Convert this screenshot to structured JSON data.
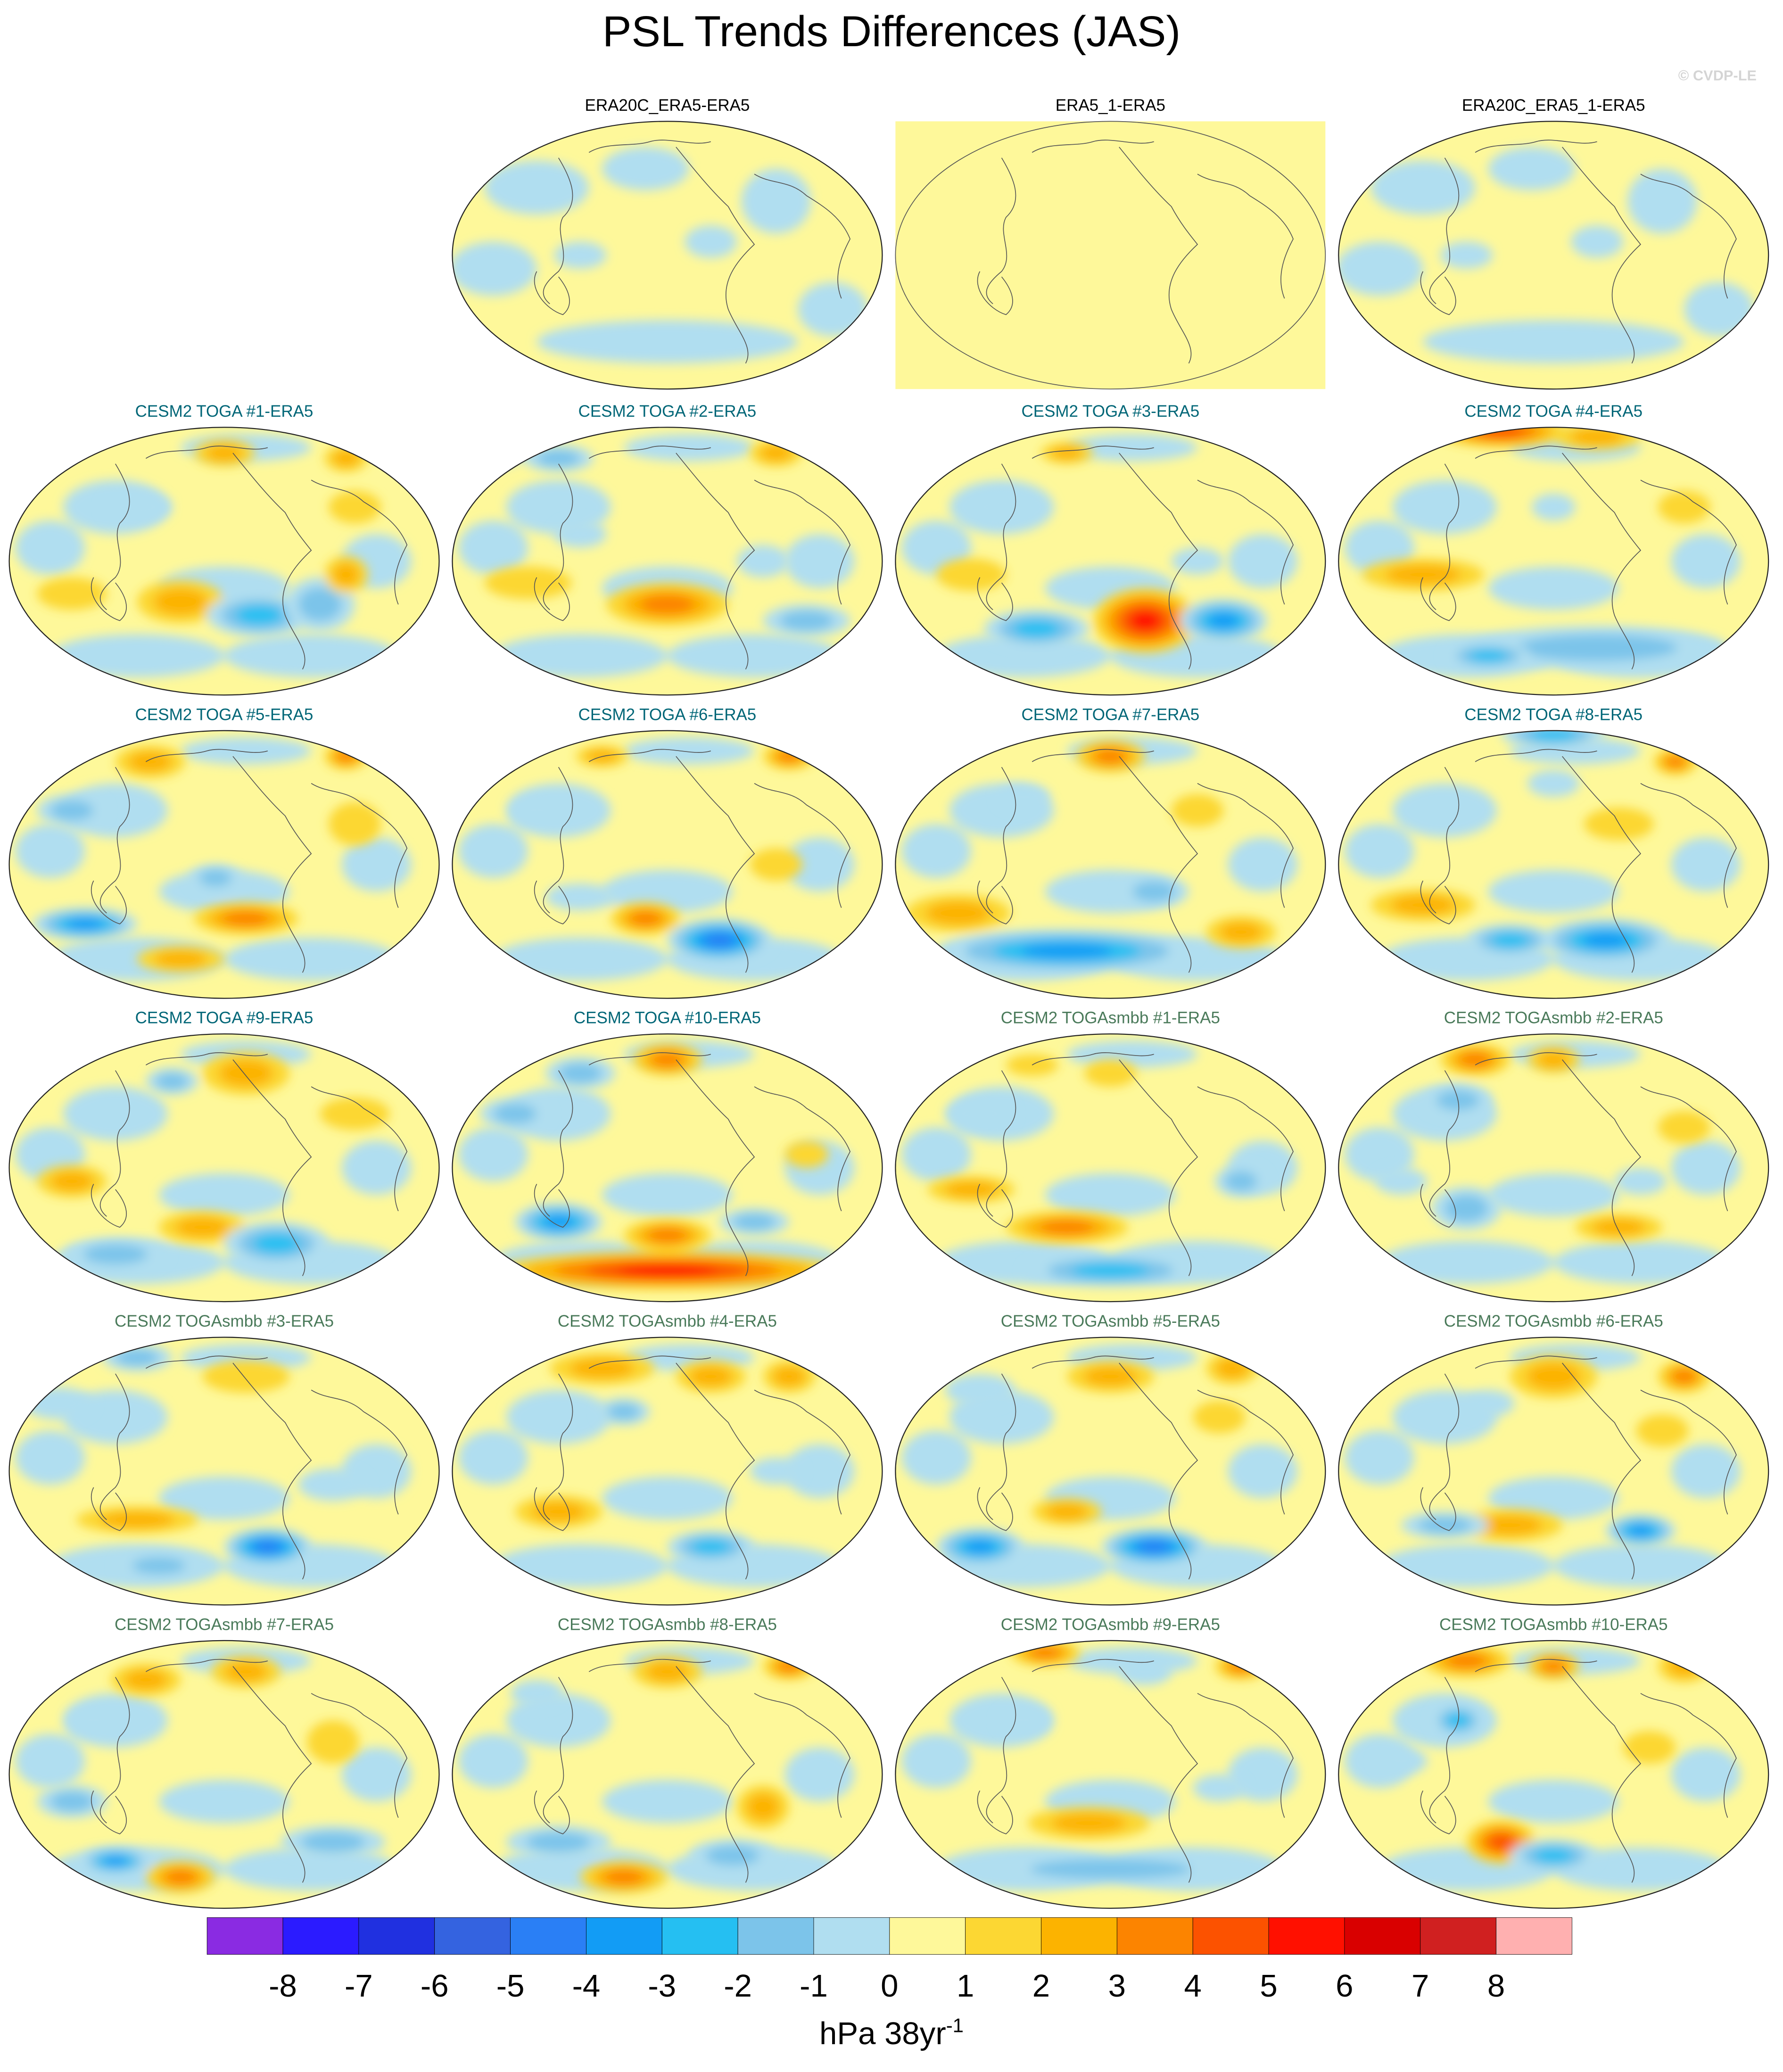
{
  "title": "PSL Trends Differences (JAS)",
  "copyright": "© CVDP-LE",
  "colorbar": {
    "colors": [
      "#8a2be2",
      "#2b1bff",
      "#2030e0",
      "#3463e0",
      "#2a7ff5",
      "#129cf5",
      "#25bff2",
      "#7cc4ea",
      "#b0def0",
      "#fef89a",
      "#fcd733",
      "#fcb300",
      "#fc8400",
      "#fc5200",
      "#ff1000",
      "#d90000",
      "#d02020",
      "#ffb0b0"
    ],
    "ticks": [
      "-8",
      "-7",
      "-6",
      "-5",
      "-4",
      "-3",
      "-2",
      "-1",
      "0",
      "1",
      "2",
      "3",
      "4",
      "5",
      "6",
      "7",
      "8"
    ],
    "units": "hPa 38yr",
    "units_exp": "-1"
  },
  "panels": [
    {
      "title": "ERA20C_ERA5-ERA5",
      "title_color": "#000000",
      "style": "obs",
      "blobs": []
    },
    {
      "title": "ERA5_1-ERA5",
      "title_color": "#000000",
      "style": "flat",
      "blobs": []
    },
    {
      "title": "ERA20C_ERA5_1-ERA5",
      "title_color": "#000000",
      "style": "obs",
      "blobs": []
    },
    {
      "title": "CESM2 TOGA #1-ERA5",
      "title_color": "#006677",
      "blobs": [
        [
          0.5,
          0.1,
          0.07,
          0.05,
          2
        ],
        [
          0.78,
          0.12,
          0.05,
          0.05,
          2
        ],
        [
          0.8,
          0.3,
          0.06,
          0.06,
          1
        ],
        [
          0.4,
          0.65,
          0.1,
          0.08,
          2
        ],
        [
          0.15,
          0.62,
          0.08,
          0.06,
          1
        ],
        [
          0.58,
          0.7,
          0.12,
          0.08,
          -3
        ],
        [
          0.72,
          0.66,
          0.08,
          0.1,
          -2
        ],
        [
          0.78,
          0.55,
          0.05,
          0.07,
          2
        ],
        [
          0.3,
          0.3,
          0.08,
          0.06,
          -1
        ]
      ]
    },
    {
      "title": "CESM2 TOGA #2-ERA5",
      "title_color": "#006677",
      "blobs": [
        [
          0.08,
          0.08,
          0.1,
          0.08,
          -2
        ],
        [
          0.25,
          0.12,
          0.08,
          0.05,
          -2
        ],
        [
          0.75,
          0.1,
          0.06,
          0.05,
          2
        ],
        [
          0.5,
          0.66,
          0.14,
          0.08,
          3
        ],
        [
          0.18,
          0.58,
          0.1,
          0.06,
          1
        ],
        [
          0.72,
          0.5,
          0.06,
          0.06,
          -1
        ],
        [
          0.3,
          0.4,
          0.06,
          0.05,
          -1
        ],
        [
          0.82,
          0.72,
          0.1,
          0.06,
          -2
        ]
      ]
    },
    {
      "title": "CESM2 TOGA #3-ERA5",
      "title_color": "#006677",
      "blobs": [
        [
          0.58,
          0.72,
          0.12,
          0.12,
          5
        ],
        [
          0.33,
          0.75,
          0.12,
          0.07,
          -3
        ],
        [
          0.76,
          0.72,
          0.1,
          0.08,
          -4
        ],
        [
          0.4,
          0.1,
          0.06,
          0.04,
          2
        ],
        [
          0.25,
          0.3,
          0.08,
          0.06,
          -1
        ],
        [
          0.18,
          0.55,
          0.08,
          0.06,
          1
        ],
        [
          0.7,
          0.5,
          0.06,
          0.05,
          -1
        ]
      ]
    },
    {
      "title": "CESM2 TOGA #4-ERA5",
      "title_color": "#006677",
      "blobs": [
        [
          0.38,
          0.02,
          0.15,
          0.06,
          4
        ],
        [
          0.6,
          0.04,
          0.1,
          0.05,
          2
        ],
        [
          0.2,
          0.55,
          0.14,
          0.06,
          2
        ],
        [
          0.6,
          0.82,
          0.3,
          0.08,
          -2
        ],
        [
          0.35,
          0.85,
          0.1,
          0.05,
          -3
        ],
        [
          0.8,
          0.3,
          0.06,
          0.06,
          1
        ],
        [
          0.5,
          0.3,
          0.05,
          0.05,
          -1
        ]
      ]
    },
    {
      "title": "CESM2 TOGA #5-ERA5",
      "title_color": "#006677",
      "blobs": [
        [
          0.33,
          0.12,
          0.08,
          0.06,
          2
        ],
        [
          0.78,
          0.1,
          0.05,
          0.05,
          3
        ],
        [
          0.15,
          0.3,
          0.08,
          0.06,
          -2
        ],
        [
          0.55,
          0.7,
          0.12,
          0.06,
          3
        ],
        [
          0.18,
          0.72,
          0.12,
          0.06,
          -4
        ],
        [
          0.48,
          0.55,
          0.06,
          0.05,
          -2
        ],
        [
          0.8,
          0.35,
          0.06,
          0.08,
          1
        ],
        [
          0.4,
          0.85,
          0.1,
          0.05,
          2
        ]
      ]
    },
    {
      "title": "CESM2 TOGA #6-ERA5",
      "title_color": "#006677",
      "blobs": [
        [
          0.78,
          0.1,
          0.06,
          0.05,
          3
        ],
        [
          0.35,
          0.1,
          0.06,
          0.04,
          2
        ],
        [
          0.45,
          0.7,
          0.08,
          0.06,
          3
        ],
        [
          0.62,
          0.78,
          0.12,
          0.08,
          -5
        ],
        [
          0.3,
          0.62,
          0.08,
          0.05,
          -1
        ],
        [
          0.75,
          0.5,
          0.06,
          0.06,
          1
        ],
        [
          0.2,
          0.3,
          0.06,
          0.05,
          -1
        ]
      ]
    },
    {
      "title": "CESM2 TOGA #7-ERA5",
      "title_color": "#006677",
      "blobs": [
        [
          0.5,
          0.1,
          0.08,
          0.06,
          3
        ],
        [
          0.15,
          0.68,
          0.12,
          0.07,
          2
        ],
        [
          0.4,
          0.82,
          0.3,
          0.08,
          -4
        ],
        [
          0.6,
          0.6,
          0.08,
          0.06,
          -2
        ],
        [
          0.7,
          0.3,
          0.06,
          0.06,
          1
        ],
        [
          0.8,
          0.75,
          0.08,
          0.06,
          2
        ],
        [
          0.3,
          0.25,
          0.06,
          0.05,
          -1
        ]
      ]
    },
    {
      "title": "CESM2 TOGA #8-ERA5",
      "title_color": "#006677",
      "blobs": [
        [
          0.5,
          0.02,
          0.12,
          0.05,
          -3
        ],
        [
          0.78,
          0.12,
          0.05,
          0.05,
          3
        ],
        [
          0.2,
          0.65,
          0.12,
          0.06,
          2
        ],
        [
          0.62,
          0.78,
          0.15,
          0.08,
          -4
        ],
        [
          0.4,
          0.78,
          0.1,
          0.06,
          -3
        ],
        [
          0.65,
          0.35,
          0.08,
          0.06,
          1
        ],
        [
          0.5,
          0.2,
          0.06,
          0.05,
          -1
        ]
      ]
    },
    {
      "title": "CESM2 TOGA #9-ERA5",
      "title_color": "#006677",
      "blobs": [
        [
          0.55,
          0.15,
          0.1,
          0.08,
          2
        ],
        [
          0.38,
          0.18,
          0.06,
          0.05,
          -2
        ],
        [
          0.15,
          0.55,
          0.08,
          0.06,
          2
        ],
        [
          0.45,
          0.72,
          0.1,
          0.06,
          2
        ],
        [
          0.62,
          0.78,
          0.12,
          0.08,
          -3
        ],
        [
          0.25,
          0.82,
          0.12,
          0.06,
          -2
        ],
        [
          0.8,
          0.3,
          0.08,
          0.06,
          1
        ]
      ]
    },
    {
      "title": "CESM2 TOGA #10-ERA5",
      "title_color": "#006677",
      "blobs": [
        [
          0.5,
          0.88,
          0.4,
          0.07,
          5
        ],
        [
          0.5,
          0.75,
          0.1,
          0.06,
          3
        ],
        [
          0.25,
          0.7,
          0.1,
          0.07,
          -4
        ],
        [
          0.5,
          0.1,
          0.08,
          0.06,
          3
        ],
        [
          0.3,
          0.15,
          0.08,
          0.06,
          -2
        ],
        [
          0.15,
          0.3,
          0.08,
          0.06,
          -2
        ],
        [
          0.7,
          0.7,
          0.08,
          0.05,
          -2
        ],
        [
          0.82,
          0.45,
          0.05,
          0.05,
          1
        ]
      ]
    },
    {
      "title": "CESM2 TOGAsmbb #1-ERA5",
      "title_color": "#4a7a5a",
      "blobs": [
        [
          0.4,
          0.72,
          0.14,
          0.06,
          3
        ],
        [
          0.5,
          0.88,
          0.2,
          0.06,
          -3
        ],
        [
          0.32,
          0.12,
          0.06,
          0.04,
          1
        ],
        [
          0.5,
          0.15,
          0.06,
          0.05,
          1
        ],
        [
          0.2,
          0.3,
          0.08,
          0.06,
          -1
        ],
        [
          0.18,
          0.58,
          0.1,
          0.05,
          2
        ],
        [
          0.8,
          0.55,
          0.06,
          0.06,
          -2
        ]
      ]
    },
    {
      "title": "CESM2 TOGAsmbb #2-ERA5",
      "title_color": "#4a7a5a",
      "blobs": [
        [
          0.32,
          0.1,
          0.08,
          0.06,
          3
        ],
        [
          0.5,
          0.1,
          0.06,
          0.05,
          2
        ],
        [
          0.28,
          0.25,
          0.08,
          0.06,
          -2
        ],
        [
          0.3,
          0.65,
          0.08,
          0.08,
          -2
        ],
        [
          0.65,
          0.72,
          0.1,
          0.05,
          2
        ],
        [
          0.15,
          0.55,
          0.06,
          0.05,
          -1
        ],
        [
          0.8,
          0.35,
          0.06,
          0.06,
          1
        ],
        [
          0.7,
          0.55,
          0.06,
          0.05,
          -1
        ]
      ]
    },
    {
      "title": "CESM2 TOGAsmbb #3-ERA5",
      "title_color": "#4a7a5a",
      "blobs": [
        [
          0.6,
          0.78,
          0.1,
          0.07,
          -5
        ],
        [
          0.3,
          0.68,
          0.14,
          0.05,
          2
        ],
        [
          0.55,
          0.15,
          0.1,
          0.06,
          1
        ],
        [
          0.3,
          0.08,
          0.08,
          0.05,
          -2
        ],
        [
          0.12,
          0.25,
          0.08,
          0.06,
          -1
        ],
        [
          0.75,
          0.55,
          0.08,
          0.06,
          -1
        ],
        [
          0.35,
          0.85,
          0.1,
          0.05,
          -2
        ]
      ]
    },
    {
      "title": "CESM2 TOGAsmbb #4-ERA5",
      "title_color": "#4a7a5a",
      "blobs": [
        [
          0.35,
          0.12,
          0.12,
          0.06,
          2
        ],
        [
          0.6,
          0.15,
          0.08,
          0.06,
          2
        ],
        [
          0.78,
          0.15,
          0.06,
          0.06,
          2
        ],
        [
          0.4,
          0.28,
          0.06,
          0.05,
          -2
        ],
        [
          0.25,
          0.65,
          0.1,
          0.06,
          2
        ],
        [
          0.6,
          0.78,
          0.1,
          0.06,
          -3
        ],
        [
          0.75,
          0.5,
          0.06,
          0.05,
          -1
        ]
      ]
    },
    {
      "title": "CESM2 TOGAsmbb #5-ERA5",
      "title_color": "#4a7a5a",
      "blobs": [
        [
          0.2,
          0.78,
          0.1,
          0.07,
          -4
        ],
        [
          0.6,
          0.78,
          0.12,
          0.07,
          -5
        ],
        [
          0.5,
          0.15,
          0.1,
          0.06,
          2
        ],
        [
          0.78,
          0.12,
          0.06,
          0.06,
          2
        ],
        [
          0.75,
          0.3,
          0.06,
          0.06,
          1
        ],
        [
          0.2,
          0.2,
          0.08,
          0.06,
          -1
        ],
        [
          0.4,
          0.65,
          0.08,
          0.05,
          2
        ]
      ]
    },
    {
      "title": "CESM2 TOGAsmbb #6-ERA5",
      "title_color": "#4a7a5a",
      "blobs": [
        [
          0.5,
          0.15,
          0.1,
          0.08,
          2
        ],
        [
          0.8,
          0.15,
          0.06,
          0.06,
          3
        ],
        [
          0.75,
          0.35,
          0.06,
          0.06,
          1
        ],
        [
          0.4,
          0.7,
          0.12,
          0.06,
          2
        ],
        [
          0.7,
          0.72,
          0.08,
          0.06,
          -4
        ],
        [
          0.25,
          0.7,
          0.1,
          0.05,
          -2
        ],
        [
          0.35,
          0.25,
          0.06,
          0.05,
          -1
        ]
      ]
    },
    {
      "title": "CESM2 TOGAsmbb #7-ERA5",
      "title_color": "#4a7a5a",
      "blobs": [
        [
          0.32,
          0.15,
          0.08,
          0.06,
          2
        ],
        [
          0.55,
          0.12,
          0.08,
          0.06,
          2
        ],
        [
          0.25,
          0.82,
          0.08,
          0.05,
          -4
        ],
        [
          0.4,
          0.88,
          0.08,
          0.06,
          3
        ],
        [
          0.75,
          0.75,
          0.12,
          0.06,
          -2
        ],
        [
          0.15,
          0.6,
          0.08,
          0.06,
          -2
        ],
        [
          0.75,
          0.38,
          0.06,
          0.08,
          1
        ],
        [
          0.2,
          0.3,
          0.06,
          0.05,
          -1
        ]
      ]
    },
    {
      "title": "CESM2 TOGAsmbb #8-ERA5",
      "title_color": "#4a7a5a",
      "blobs": [
        [
          0.5,
          0.12,
          0.08,
          0.06,
          2
        ],
        [
          0.78,
          0.1,
          0.06,
          0.05,
          3
        ],
        [
          0.4,
          0.88,
          0.1,
          0.06,
          3
        ],
        [
          0.25,
          0.75,
          0.12,
          0.06,
          -2
        ],
        [
          0.65,
          0.8,
          0.1,
          0.06,
          -2
        ],
        [
          0.72,
          0.62,
          0.06,
          0.08,
          2
        ],
        [
          0.2,
          0.2,
          0.06,
          0.05,
          -1
        ]
      ]
    },
    {
      "title": "CESM2 TOGAsmbb #9-ERA5",
      "title_color": "#4a7a5a",
      "blobs": [
        [
          0.35,
          0.05,
          0.08,
          0.05,
          3
        ],
        [
          0.8,
          0.1,
          0.06,
          0.05,
          3
        ],
        [
          0.45,
          0.68,
          0.14,
          0.06,
          2
        ],
        [
          0.5,
          0.85,
          0.3,
          0.06,
          -2
        ],
        [
          0.58,
          0.12,
          0.06,
          0.05,
          -1
        ],
        [
          0.3,
          0.3,
          0.06,
          0.05,
          -1
        ],
        [
          0.75,
          0.55,
          0.06,
          0.05,
          -1
        ]
      ]
    },
    {
      "title": "CESM2 TOGAsmbb #10-ERA5",
      "title_color": "#4a7a5a",
      "blobs": [
        [
          0.3,
          0.08,
          0.1,
          0.06,
          3
        ],
        [
          0.5,
          0.1,
          0.06,
          0.05,
          3
        ],
        [
          0.8,
          0.1,
          0.06,
          0.06,
          2
        ],
        [
          0.38,
          0.75,
          0.08,
          0.08,
          4
        ],
        [
          0.5,
          0.8,
          0.1,
          0.06,
          -3
        ],
        [
          0.28,
          0.3,
          0.06,
          0.06,
          -3
        ],
        [
          0.15,
          0.45,
          0.06,
          0.05,
          -1
        ],
        [
          0.72,
          0.4,
          0.06,
          0.06,
          1
        ]
      ]
    }
  ]
}
